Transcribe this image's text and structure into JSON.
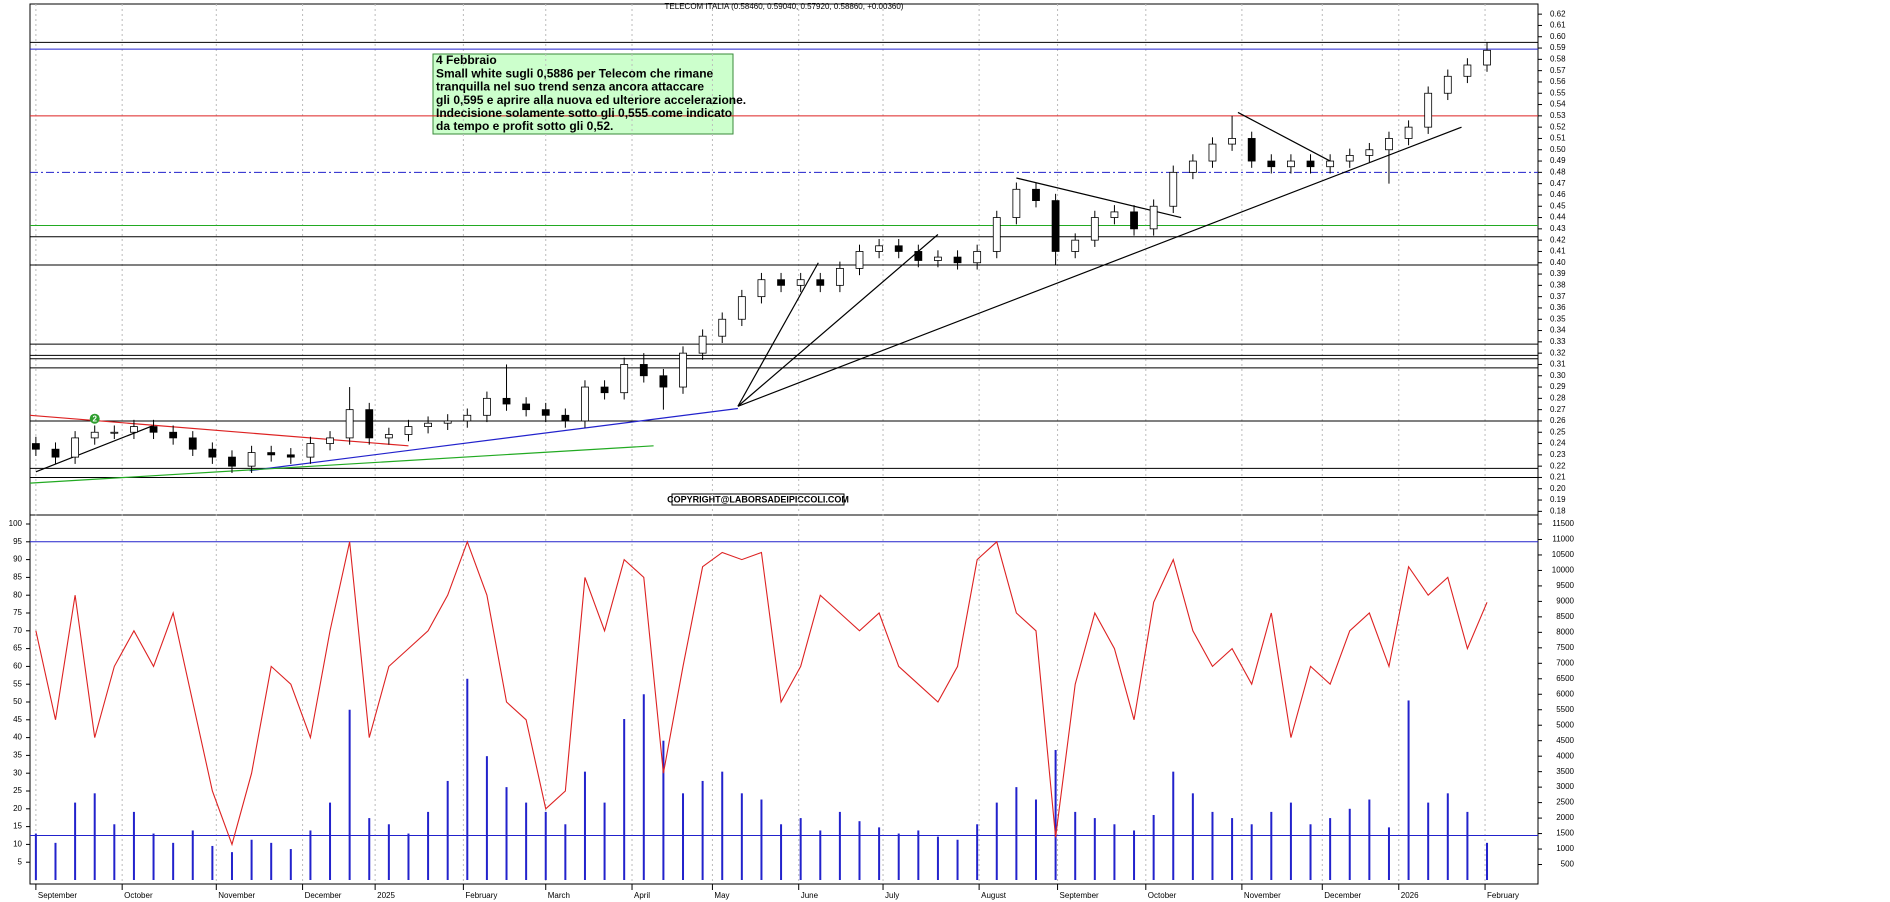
{
  "chart_data": {
    "type": "candlestick",
    "title": "TELECOM ITALIA (0.58460, 0.59040, 0.57920, 0.58860, +0.00360)",
    "copyright": "COPYRIGHT@LABORSADEIPICCOLI.COM",
    "annotation": [
      "4 Febbraio",
      "Small white sugli 0,5886 per Telecom che rimane",
      "tranquilla nel suo trend senza ancora attaccare",
      "gli 0,595 e aprire alla nuova  ed ulteriore accelerazione.",
      "Indecisione solamente sotto gli 0,555 come indicato",
      "da tempo e profit sotto gli 0,52."
    ],
    "marker": {
      "label": "2",
      "x": 3,
      "y": 0.262,
      "color": "#2e9e2e"
    },
    "xlim": [
      -0.3,
      76.6
    ],
    "xticks": [
      {
        "value": 0,
        "label": "September"
      },
      {
        "value": 4.4,
        "label": "October"
      },
      {
        "value": 9.2,
        "label": "November"
      },
      {
        "value": 13.6,
        "label": "December"
      },
      {
        "value": 17.3,
        "label": "2025"
      },
      {
        "value": 21.8,
        "label": "February"
      },
      {
        "value": 26,
        "label": "March"
      },
      {
        "value": 30.4,
        "label": "April"
      },
      {
        "value": 34.5,
        "label": "May"
      },
      {
        "value": 38.9,
        "label": "June"
      },
      {
        "value": 43.2,
        "label": "July"
      },
      {
        "value": 48.1,
        "label": "August"
      },
      {
        "value": 52.1,
        "label": "September"
      },
      {
        "value": 56.6,
        "label": "October"
      },
      {
        "value": 61.5,
        "label": "November"
      },
      {
        "value": 65.6,
        "label": "December"
      },
      {
        "value": 69.5,
        "label": "2026"
      },
      {
        "value": 73.9,
        "label": "February"
      }
    ],
    "grid": true,
    "ylim": [
      0.175,
      0.625
    ],
    "yticks": [
      0.18,
      0.19,
      {
        "value": 0.2,
        "label": "0.20"
      },
      0.21,
      0.22,
      0.23,
      0.24,
      0.25,
      0.26,
      0.27,
      0.28,
      0.29,
      {
        "value": 0.3,
        "label": "0.30"
      },
      0.31,
      0.32,
      0.33,
      0.34,
      0.35,
      0.36,
      0.37,
      0.38,
      0.39,
      {
        "value": 0.4,
        "label": "0.40"
      },
      0.41,
      0.42,
      0.43,
      0.44,
      0.45,
      0.46,
      0.47,
      0.48,
      0.49,
      {
        "value": 0.5,
        "label": "0.50"
      },
      0.51,
      0.52,
      0.53,
      0.54,
      0.55,
      0.56,
      0.57,
      0.58,
      0.59,
      {
        "value": 0.6,
        "label": "0.60"
      },
      0.61,
      0.62
    ],
    "open": [
      0.24,
      0.235,
      0.228,
      0.245,
      0.25,
      0.25,
      0.255,
      0.25,
      0.245,
      0.235,
      0.228,
      0.22,
      0.232,
      0.23,
      0.228,
      0.24,
      0.245,
      0.27,
      0.245,
      0.248,
      0.255,
      0.258,
      0.26,
      0.265,
      0.28,
      0.275,
      0.27,
      0.265,
      0.26,
      0.29,
      0.285,
      0.31,
      0.3,
      0.29,
      0.32,
      0.335,
      0.35,
      0.37,
      0.385,
      0.38,
      0.385,
      0.38,
      0.395,
      0.41,
      0.415,
      0.41,
      0.402,
      0.405,
      0.4,
      0.41,
      0.44,
      0.465,
      0.455,
      0.41,
      0.42,
      0.44,
      0.445,
      0.43,
      0.45,
      0.48,
      0.49,
      0.505,
      0.51,
      0.49,
      0.485,
      0.49,
      0.485,
      0.49,
      0.495,
      0.5,
      0.51,
      0.52,
      0.55,
      0.565,
      0.575
    ],
    "high": [
      0.246,
      0.241,
      0.251,
      0.256,
      0.256,
      0.261,
      0.261,
      0.256,
      0.251,
      0.241,
      0.234,
      0.238,
      0.238,
      0.236,
      0.246,
      0.251,
      0.29,
      0.276,
      0.254,
      0.261,
      0.264,
      0.266,
      0.271,
      0.286,
      0.31,
      0.281,
      0.276,
      0.271,
      0.296,
      0.296,
      0.316,
      0.32,
      0.306,
      0.326,
      0.341,
      0.356,
      0.376,
      0.391,
      0.391,
      0.391,
      0.391,
      0.401,
      0.416,
      0.421,
      0.421,
      0.416,
      0.411,
      0.411,
      0.416,
      0.446,
      0.471,
      0.471,
      0.461,
      0.426,
      0.446,
      0.451,
      0.451,
      0.456,
      0.486,
      0.496,
      0.511,
      0.53,
      0.516,
      0.496,
      0.496,
      0.496,
      0.496,
      0.501,
      0.506,
      0.516,
      0.526,
      0.556,
      0.571,
      0.581,
      0.595
    ],
    "low": [
      0.229,
      0.222,
      0.222,
      0.239,
      0.244,
      0.244,
      0.244,
      0.239,
      0.229,
      0.222,
      0.214,
      0.214,
      0.224,
      0.222,
      0.222,
      0.234,
      0.239,
      0.239,
      0.239,
      0.242,
      0.249,
      0.252,
      0.254,
      0.259,
      0.269,
      0.264,
      0.259,
      0.254,
      0.254,
      0.279,
      0.279,
      0.294,
      0.27,
      0.284,
      0.314,
      0.329,
      0.344,
      0.364,
      0.374,
      0.374,
      0.374,
      0.374,
      0.389,
      0.404,
      0.404,
      0.396,
      0.396,
      0.394,
      0.394,
      0.404,
      0.434,
      0.449,
      0.398,
      0.404,
      0.414,
      0.434,
      0.424,
      0.424,
      0.444,
      0.474,
      0.484,
      0.499,
      0.484,
      0.479,
      0.479,
      0.479,
      0.479,
      0.484,
      0.489,
      0.47,
      0.504,
      0.514,
      0.544,
      0.559,
      0.569
    ],
    "close": [
      0.235,
      0.228,
      0.245,
      0.25,
      0.25,
      0.255,
      0.25,
      0.245,
      0.235,
      0.228,
      0.22,
      0.232,
      0.23,
      0.228,
      0.24,
      0.245,
      0.27,
      0.245,
      0.248,
      0.255,
      0.258,
      0.26,
      0.265,
      0.28,
      0.275,
      0.27,
      0.265,
      0.26,
      0.29,
      0.285,
      0.31,
      0.3,
      0.29,
      0.32,
      0.335,
      0.35,
      0.37,
      0.385,
      0.38,
      0.385,
      0.38,
      0.395,
      0.41,
      0.415,
      0.41,
      0.402,
      0.405,
      0.4,
      0.41,
      0.44,
      0.465,
      0.455,
      0.41,
      0.42,
      0.44,
      0.445,
      0.43,
      0.45,
      0.48,
      0.49,
      0.505,
      0.51,
      0.49,
      0.485,
      0.49,
      0.485,
      0.49,
      0.495,
      0.5,
      0.51,
      0.52,
      0.55,
      0.565,
      0.575,
      0.588
    ],
    "levels": [
      {
        "value": 0.595,
        "color": "#000000"
      },
      {
        "value": 0.589,
        "color": "#2222cc"
      },
      {
        "value": 0.53,
        "color": "#dd2222"
      },
      {
        "value": 0.48,
        "color": "#2222cc",
        "dashed": true
      },
      {
        "value": 0.433,
        "color": "#22aa22"
      },
      {
        "value": 0.423,
        "color": "#000000"
      },
      {
        "value": 0.398,
        "color": "#000000"
      },
      {
        "value": 0.328,
        "color": "#000000"
      },
      {
        "value": 0.318,
        "color": "#000000"
      },
      {
        "value": 0.315,
        "color": "#000000"
      },
      {
        "value": 0.307,
        "color": "#000000"
      },
      {
        "value": 0.26,
        "color": "#000000"
      },
      {
        "value": 0.218,
        "color": "#000000"
      },
      {
        "value": 0.21,
        "color": "#000000"
      }
    ],
    "trendlines": [
      {
        "from": [
          0,
          0.215
        ],
        "to": [
          6,
          0.256
        ],
        "color": "#000000"
      },
      {
        "from": [
          -0.3,
          0.265
        ],
        "to": [
          19,
          0.238
        ],
        "color": "#dd2222"
      },
      {
        "from": [
          10.9,
          0.216
        ],
        "to": [
          35.8,
          0.271
        ],
        "color": "#2222cc"
      },
      {
        "from": [
          -0.3,
          0.205
        ],
        "to": [
          31.5,
          0.238
        ],
        "color": "#22aa22"
      },
      {
        "from": [
          35.8,
          0.273
        ],
        "to": [
          72.7,
          0.52
        ],
        "color": "#000000"
      },
      {
        "from": [
          35.8,
          0.273
        ],
        "to": [
          39.9,
          0.4
        ],
        "color": "#000000"
      },
      {
        "from": [
          35.8,
          0.273
        ],
        "to": [
          46,
          0.425
        ],
        "color": "#000000"
      },
      {
        "from": [
          50,
          0.475
        ],
        "to": [
          58.4,
          0.44
        ],
        "color": "#000000"
      },
      {
        "from": [
          61.3,
          0.533
        ],
        "to": [
          66,
          0.49
        ],
        "color": "#000000"
      }
    ],
    "oscillator": {
      "name": "oscillator",
      "color": "#dd2222",
      "ylim": [
        0,
        100
      ],
      "yticks": [
        5,
        10,
        15,
        20,
        25,
        30,
        35,
        40,
        45,
        50,
        55,
        60,
        65,
        70,
        75,
        80,
        85,
        90,
        95,
        100
      ],
      "levels": [
        95,
        12.5
      ],
      "values": [
        70,
        45,
        80,
        40,
        60,
        70,
        60,
        75,
        50,
        25,
        10,
        30,
        60,
        55,
        40,
        70,
        95,
        40,
        60,
        65,
        70,
        80,
        95,
        80,
        50,
        45,
        20,
        25,
        85,
        70,
        90,
        85,
        30,
        60,
        88,
        92,
        90,
        92,
        50,
        60,
        80,
        75,
        70,
        75,
        60,
        55,
        50,
        60,
        90,
        95,
        75,
        70,
        12,
        55,
        75,
        65,
        45,
        78,
        90,
        70,
        60,
        65,
        55,
        75,
        40,
        60,
        55,
        70,
        75,
        60,
        88,
        80,
        85,
        65,
        78
      ]
    },
    "volume": {
      "name": "volume",
      "color": "#2222cc",
      "y2lim": [
        0,
        11500
      ],
      "y2ticks": [
        500,
        1000,
        1500,
        2000,
        2500,
        3000,
        3500,
        4000,
        4500,
        5000,
        5500,
        6000,
        6500,
        7000,
        7500,
        8000,
        8500,
        9000,
        9500,
        10000,
        10500,
        11000,
        11500
      ],
      "values": [
        1500,
        1200,
        2500,
        2800,
        1800,
        2200,
        1500,
        1200,
        1600,
        1100,
        900,
        1300,
        1200,
        1000,
        1600,
        2500,
        5500,
        2000,
        1800,
        1500,
        2200,
        3200,
        6500,
        4000,
        3000,
        2500,
        2200,
        1800,
        3500,
        2500,
        5200,
        6000,
        4500,
        2800,
        3200,
        3500,
        2800,
        2600,
        1800,
        2000,
        1600,
        2200,
        1900,
        1700,
        1500,
        1600,
        1400,
        1300,
        1800,
        2500,
        3000,
        2600,
        4200,
        2200,
        2000,
        1800,
        1600,
        2100,
        3500,
        2800,
        2200,
        2000,
        1800,
        2200,
        2500,
        1800,
        2000,
        2300,
        2600,
        1700,
        5800,
        2500,
        2800,
        2200,
        1200
      ]
    }
  }
}
